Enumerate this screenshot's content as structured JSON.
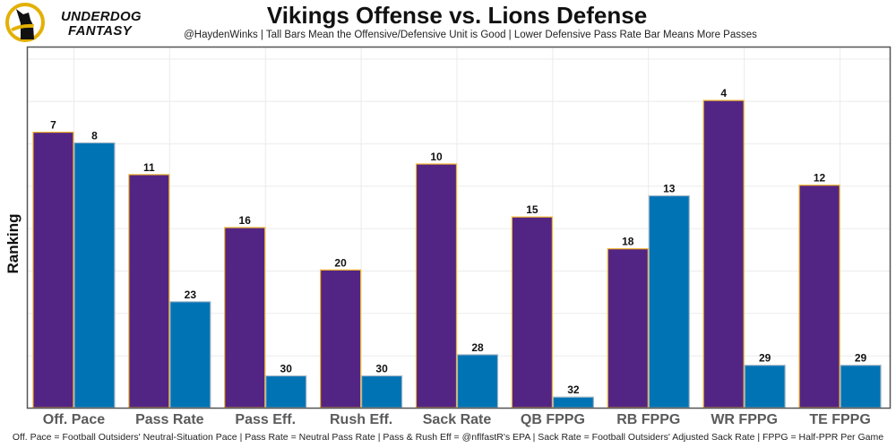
{
  "logo": {
    "line1": "UNDERDOG",
    "line2": "FANTASY",
    "colors": {
      "ring": "#e3b005",
      "dog": "#111111"
    }
  },
  "chart_data": {
    "type": "bar",
    "title": "Vikings Offense vs. Lions Defense",
    "subtitle": "@HaydenWinks | Tall Bars Mean the Offensive/Defensive Unit is Good | Lower Defensive Pass Rate Bar Means More Passes",
    "xlabel": "",
    "ylabel": "Ranking",
    "caption": "Off. Pace = Football Outsiders' Neutral-Situation Pace | Pass Rate = Neutral Pass Rate | Pass & Rush Eff = @nflfastR's EPA | Sack Rate = Football Outsiders' Adjusted Sack Rate | FPPG = Half-PPR Per Game",
    "categories": [
      "Off. Pace",
      "Pass Rate",
      "Pass Eff.",
      "Rush Eff.",
      "Sack Rate",
      "QB FPPG",
      "RB FPPG",
      "WR FPPG",
      "TE FPPG"
    ],
    "series": [
      {
        "name": "Vikings Offense",
        "color": "#522584",
        "edge": "#f2b531",
        "values": [
          7,
          11,
          16,
          20,
          10,
          15,
          18,
          4,
          12
        ]
      },
      {
        "name": "Lions Defense",
        "color": "#0073b5",
        "edge": "#a6b8c8",
        "values": [
          8,
          23,
          30,
          30,
          28,
          32,
          13,
          29,
          29
        ]
      }
    ],
    "value_encoding": "bar height = 33 - rank (rank 1 tallest)",
    "ylim": [
      0,
      34
    ],
    "y_tick_labels_shown": false,
    "grid": true,
    "legend": "none"
  }
}
